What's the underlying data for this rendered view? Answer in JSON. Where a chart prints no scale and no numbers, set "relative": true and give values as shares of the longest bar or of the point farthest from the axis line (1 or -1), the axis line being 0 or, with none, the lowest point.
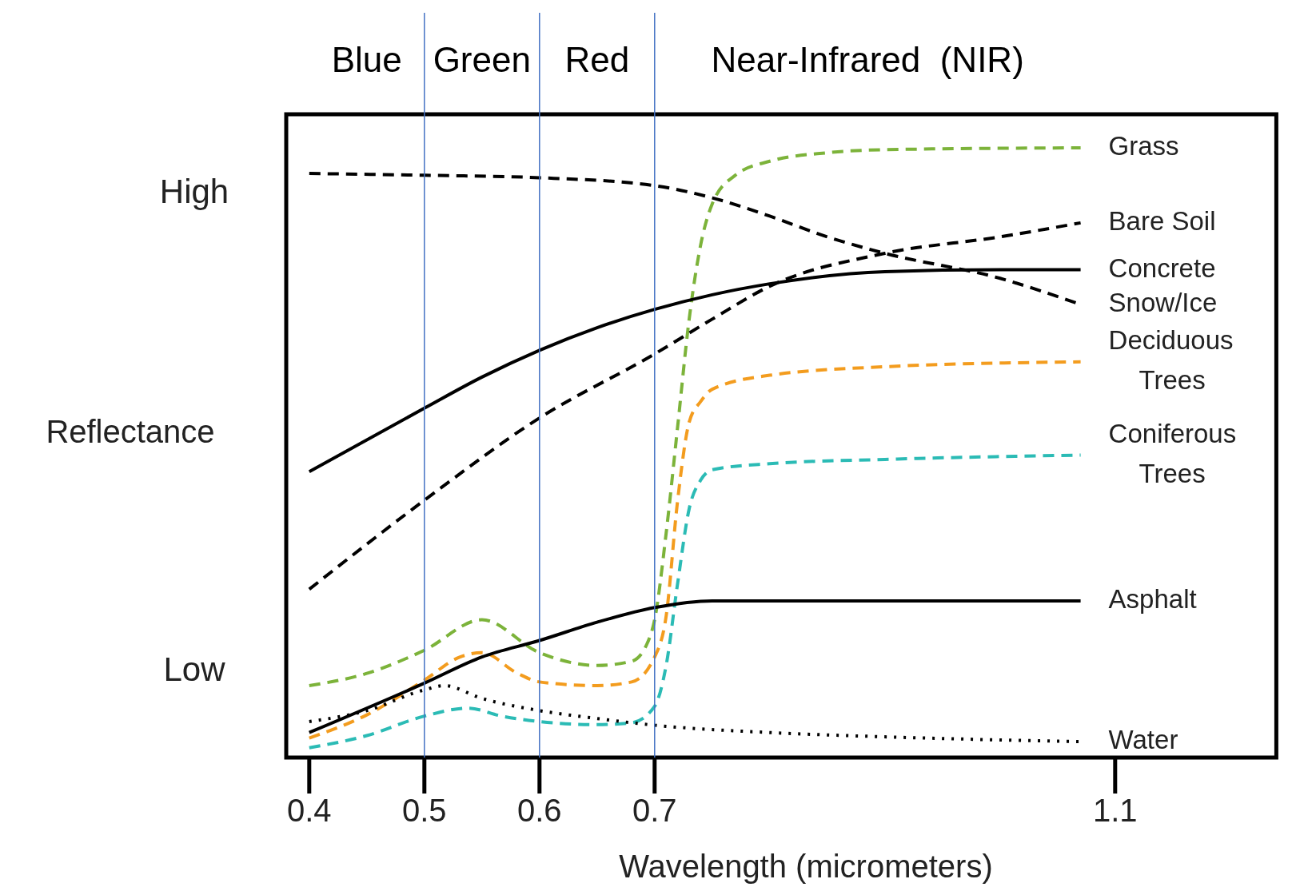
{
  "chart_data": {
    "type": "line",
    "relative": true,
    "xlabel": "Wavelength (micrometers)",
    "ylabel": "Reflectance",
    "xlim": [
      0.38,
      1.24
    ],
    "xticks": [
      0.4,
      0.5,
      0.6,
      0.7,
      1.1
    ],
    "annotations": [
      "High",
      "Low",
      "Blue",
      "Green",
      "Red",
      "Near-Infrared  (NIR)"
    ],
    "ref_lines": [
      {
        "axis": "x",
        "value": 0.5,
        "color": "#4472c4"
      },
      {
        "axis": "x",
        "value": 0.6,
        "color": "#4472c4"
      },
      {
        "axis": "x",
        "value": 0.7,
        "color": "#4472c4"
      }
    ],
    "series": [
      {
        "name": "Grass",
        "color": "#7cb33a",
        "line_style": "dashed",
        "x": [
          0.4,
          0.45,
          0.5,
          0.55,
          0.6,
          0.65,
          0.68,
          0.693,
          0.7,
          0.71,
          0.72,
          0.73,
          0.74,
          0.75,
          0.77,
          0.8,
          0.85,
          0.9,
          1.07
        ],
        "values": [
          0.118,
          0.138,
          0.176,
          0.226,
          0.172,
          0.151,
          0.158,
          0.185,
          0.226,
          0.368,
          0.543,
          0.719,
          0.841,
          0.908,
          0.955,
          0.978,
          0.992,
          0.997,
          1
        ]
      },
      {
        "name": "Bare Soil",
        "color": "#000000",
        "line_style": "dashed",
        "x": [
          0.4,
          0.5,
          0.6,
          0.7,
          0.75,
          0.8,
          0.9,
          1.0,
          1.07
        ],
        "values": [
          0.276,
          0.422,
          0.557,
          0.662,
          0.719,
          0.773,
          0.827,
          0.854,
          0.877
        ]
      },
      {
        "name": "Concrete",
        "color": "#000000",
        "line_style": "solid",
        "x": [
          0.4,
          0.5,
          0.55,
          0.6,
          0.65,
          0.7,
          0.75,
          0.8,
          0.9,
          1.0,
          1.07
        ],
        "values": [
          0.469,
          0.573,
          0.624,
          0.668,
          0.705,
          0.735,
          0.759,
          0.777,
          0.797,
          0.8,
          0.8
        ]
      },
      {
        "name": "Snow/Ice",
        "color": "#000000",
        "line_style": "dashed",
        "x": [
          0.4,
          0.5,
          0.6,
          0.7,
          0.75,
          0.8,
          0.85,
          0.9,
          1.0,
          1.07
        ],
        "values": [
          0.958,
          0.955,
          0.951,
          0.938,
          0.918,
          0.888,
          0.854,
          0.827,
          0.786,
          0.743
        ]
      },
      {
        "name": "Deciduous Trees",
        "color": "#f39c1e",
        "line_style": "dashed",
        "x": [
          0.4,
          0.45,
          0.5,
          0.531,
          0.55,
          0.581,
          0.6,
          0.65,
          0.68,
          0.7,
          0.71,
          0.72,
          0.73,
          0.74,
          0.75,
          0.8,
          0.9,
          1.07
        ],
        "values": [
          0.032,
          0.07,
          0.127,
          0.165,
          0.172,
          0.138,
          0.124,
          0.118,
          0.124,
          0.165,
          0.232,
          0.422,
          0.55,
          0.584,
          0.604,
          0.627,
          0.641,
          0.649
        ]
      },
      {
        "name": "Coniferous Trees",
        "color": "#2bbbb5",
        "line_style": "dashed",
        "x": [
          0.4,
          0.45,
          0.5,
          0.538,
          0.567,
          0.6,
          0.65,
          0.68,
          0.7,
          0.71,
          0.72,
          0.73,
          0.74,
          0.75,
          0.8,
          0.9,
          1.07
        ],
        "values": [
          0.016,
          0.036,
          0.068,
          0.081,
          0.068,
          0.059,
          0.054,
          0.057,
          0.084,
          0.151,
          0.286,
          0.408,
          0.455,
          0.472,
          0.482,
          0.489,
          0.496
        ]
      },
      {
        "name": "Asphalt",
        "color": "#000000",
        "line_style": "solid",
        "x": [
          0.4,
          0.5,
          0.55,
          0.6,
          0.65,
          0.7,
          0.75,
          0.8,
          1.07
        ],
        "values": [
          0.041,
          0.122,
          0.165,
          0.192,
          0.222,
          0.246,
          0.257,
          0.257,
          0.257
        ]
      },
      {
        "name": "Water",
        "color": "#000000",
        "line_style": "dotted",
        "x": [
          0.4,
          0.45,
          0.5,
          0.517,
          0.55,
          0.6,
          0.65,
          0.7,
          0.8,
          0.9,
          1.07
        ],
        "values": [
          0.059,
          0.077,
          0.111,
          0.118,
          0.097,
          0.077,
          0.064,
          0.053,
          0.041,
          0.034,
          0.026
        ]
      }
    ]
  }
}
